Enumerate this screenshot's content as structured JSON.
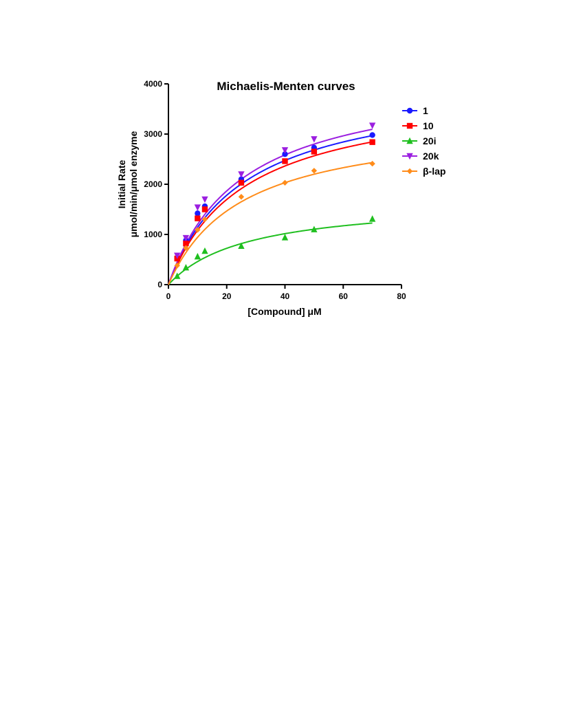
{
  "chart_data": {
    "type": "scatter",
    "title": "Michaelis-Menten curves",
    "xlabel": "[Compound] μM",
    "ylabel_lines": [
      "Initial Rate",
      "μmol/min/μmol enzyme"
    ],
    "xlim": [
      0,
      80
    ],
    "ylim": [
      0,
      4000
    ],
    "x_ticks": [
      0,
      20,
      40,
      60,
      80
    ],
    "y_ticks": [
      0,
      1000,
      2000,
      3000,
      4000
    ],
    "grid": false,
    "legend_position": "top-right",
    "fit_range": [
      0,
      70
    ],
    "series": [
      {
        "name": "1",
        "color": "#1a1aff",
        "marker": "circle",
        "x": [
          3,
          6,
          10,
          12.5,
          25,
          40,
          50,
          70
        ],
        "y": [
          530,
          880,
          1420,
          1560,
          2100,
          2600,
          2730,
          2980
        ],
        "fit": {
          "vmax": 4050,
          "km": 25.5
        }
      },
      {
        "name": "10",
        "color": "#ff0000",
        "marker": "square",
        "x": [
          3,
          6,
          10,
          12.5,
          25,
          40,
          50,
          70
        ],
        "y": [
          520,
          820,
          1320,
          1500,
          2030,
          2460,
          2650,
          2840
        ],
        "fit": {
          "vmax": 3900,
          "km": 26
        }
      },
      {
        "name": "20i",
        "color": "#1fbf1f",
        "marker": "triangle-up",
        "x": [
          3,
          6,
          10,
          12.5,
          25,
          40,
          50,
          70
        ],
        "y": [
          170,
          340,
          560,
          670,
          770,
          940,
          1100,
          1310
        ],
        "fit": {
          "vmax": 1700,
          "km": 27
        }
      },
      {
        "name": "20k",
        "color": "#9b1fe0",
        "marker": "triangle-down",
        "x": [
          3,
          6,
          10,
          12.5,
          25,
          40,
          50,
          70
        ],
        "y": [
          580,
          930,
          1540,
          1700,
          2200,
          2680,
          2900,
          3170
        ],
        "fit": {
          "vmax": 4200,
          "km": 25
        }
      },
      {
        "name": "β-lap",
        "color": "#ff8c1a",
        "marker": "diamond",
        "x": [
          3,
          6,
          10,
          12.5,
          25,
          40,
          50,
          70
        ],
        "y": [
          380,
          730,
          1090,
          1300,
          1750,
          2030,
          2270,
          2410
        ],
        "fit": {
          "vmax": 3300,
          "km": 25
        }
      }
    ]
  }
}
